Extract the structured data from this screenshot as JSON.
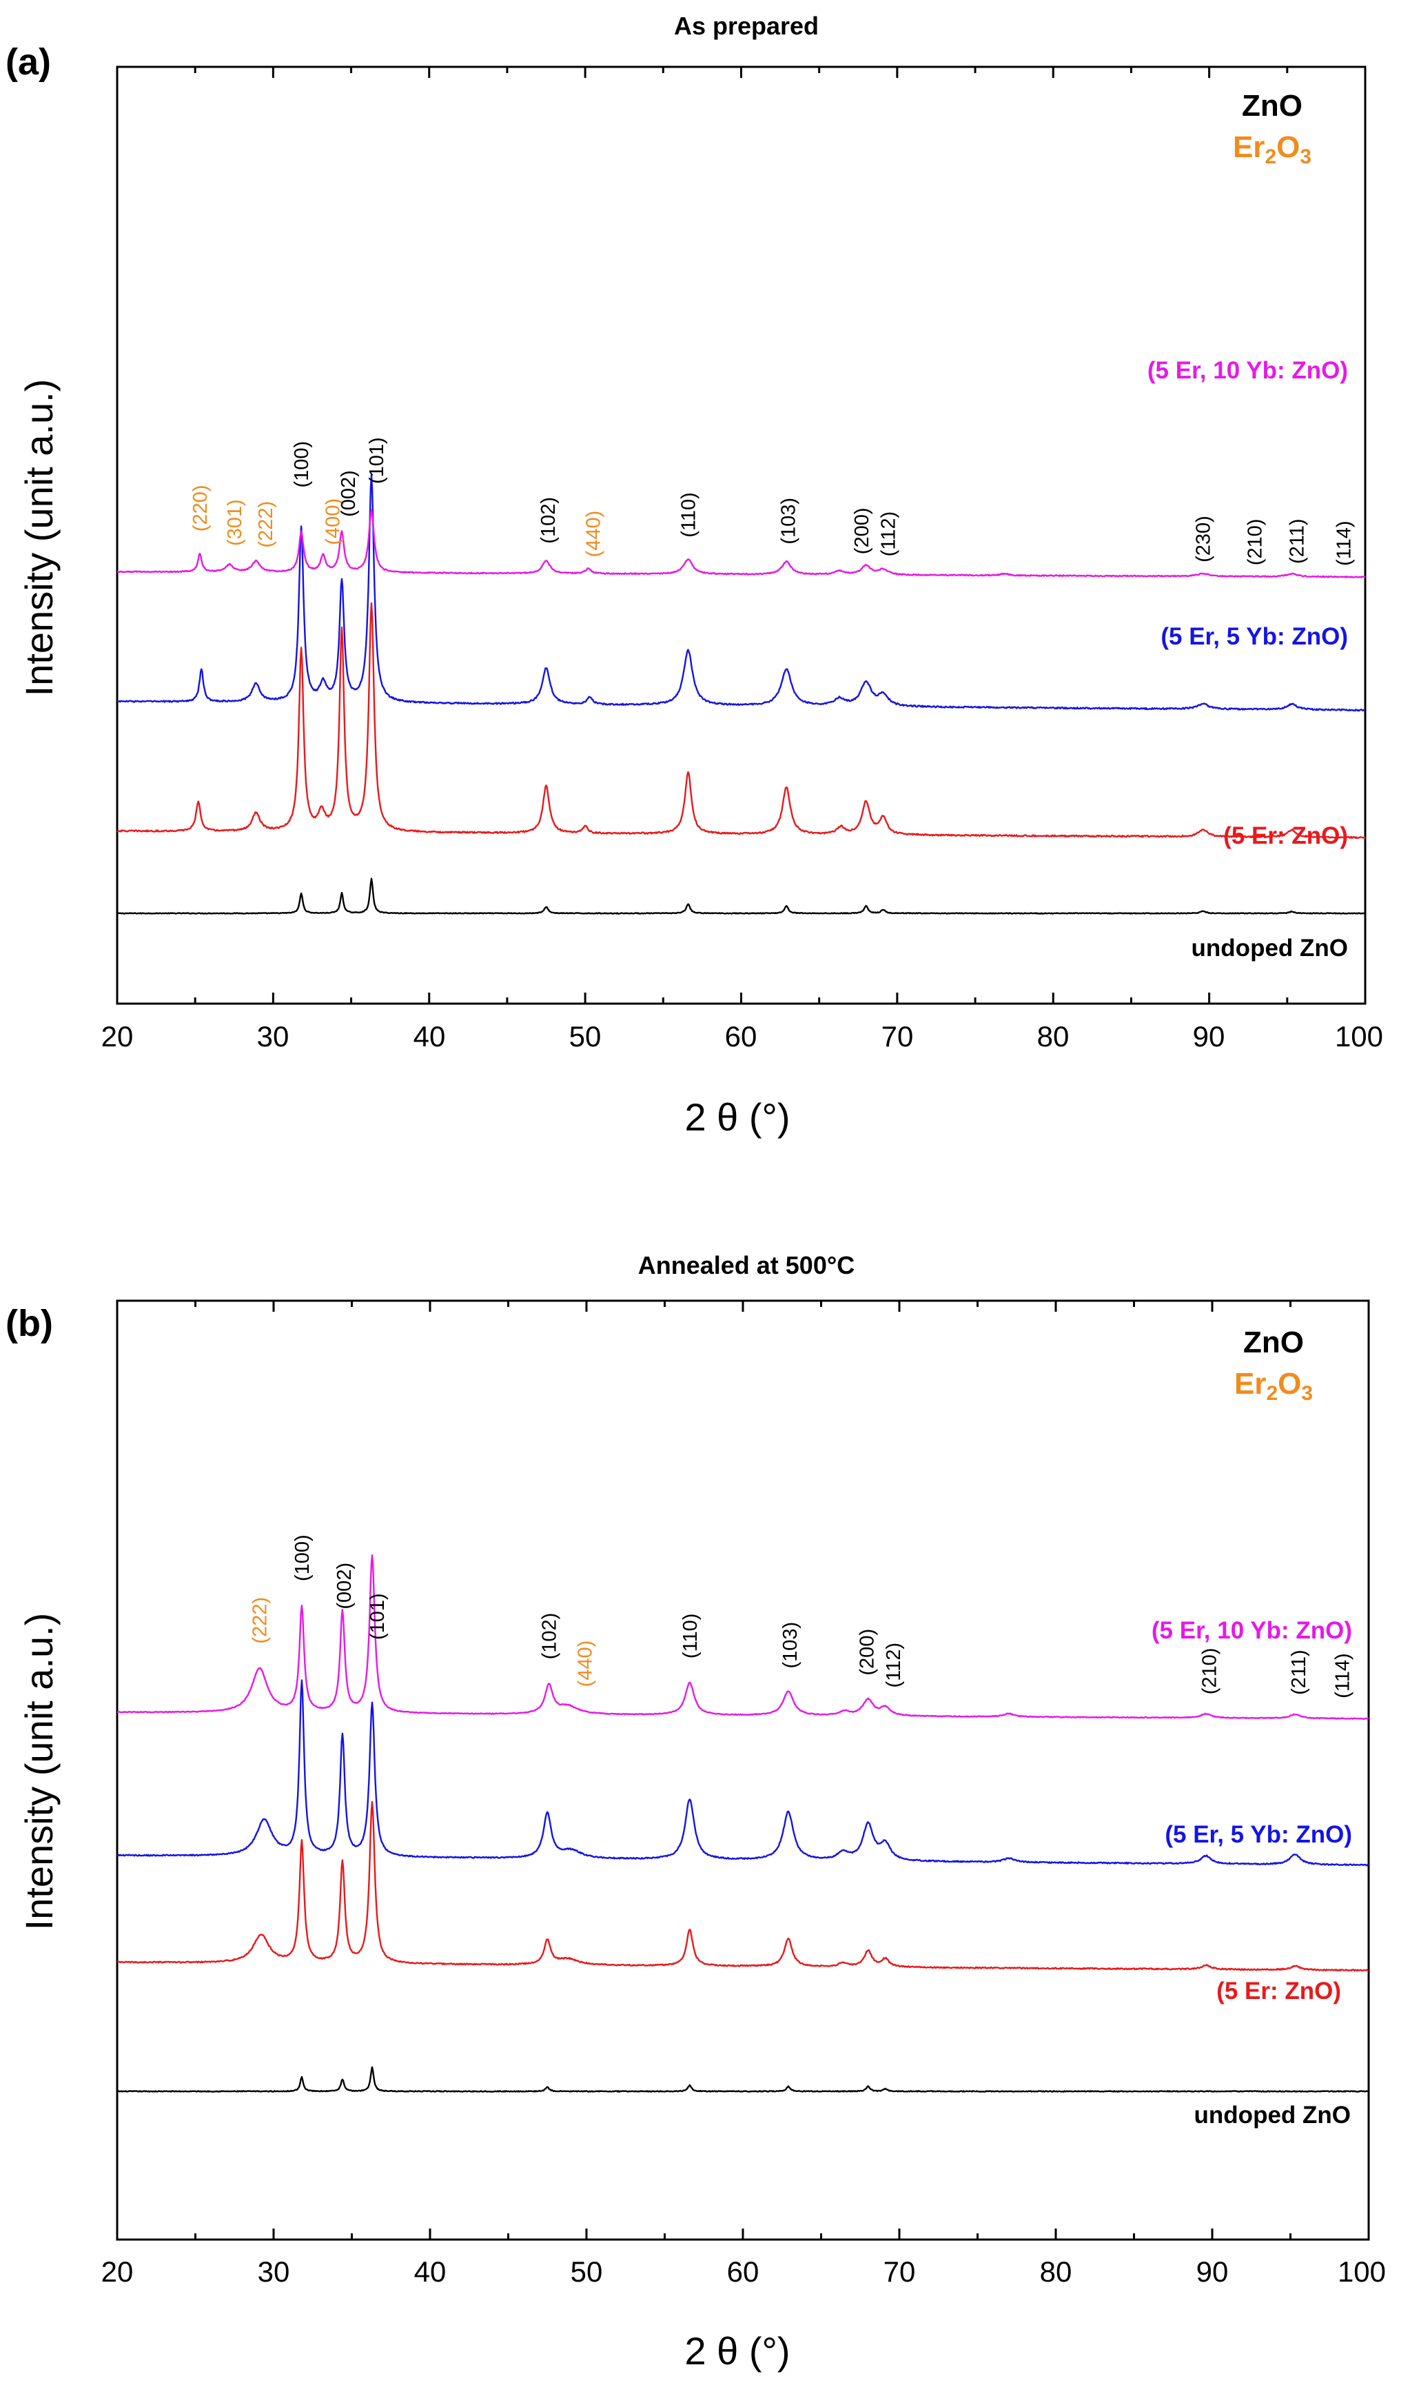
{
  "chart_data": [
    {
      "id": "a",
      "type": "line",
      "panel_label": "(a)",
      "title": "As prepared",
      "xlabel": "2 θ (°)",
      "ylabel": "Intensity (unit a.u.)",
      "xlim": [
        20,
        100
      ],
      "xticks": [
        "20",
        "30",
        "40",
        "50",
        "60",
        "70",
        "80",
        "90",
        "100"
      ],
      "legend": [
        {
          "text": "ZnO",
          "color": "#000000"
        },
        {
          "text": "Er2O3",
          "color": "#f08c1e"
        }
      ],
      "series": [
        {
          "name": "undoped ZnO",
          "label": "undoped ZnO",
          "color": "#000000",
          "offset": 0,
          "base": 0,
          "slope": 0,
          "noise": 0.2,
          "peaks": [
            [
              31.8,
              5.5,
              0.12
            ],
            [
              34.4,
              5.5,
              0.12
            ],
            [
              36.3,
              9.5,
              0.12
            ],
            [
              47.5,
              1.8,
              0.15
            ],
            [
              56.6,
              2.5,
              0.15
            ],
            [
              62.9,
              2,
              0.15
            ],
            [
              68,
              2,
              0.15
            ],
            [
              69.1,
              1,
              0.15
            ],
            [
              89.6,
              0.6,
              0.2
            ],
            [
              95.3,
              0.5,
              0.2
            ]
          ]
        },
        {
          "name": "5 Er: ZnO",
          "label": "(5 Er: ZnO)",
          "color": "#e8191b",
          "offset": 22,
          "base": 0.5,
          "slope": -0.022,
          "noise": 0.4,
          "peaks": [
            [
              25.2,
              8,
              0.18
            ],
            [
              28.9,
              5,
              0.3
            ],
            [
              31.8,
              50,
              0.18
            ],
            [
              33.1,
              5,
              0.25
            ],
            [
              34.4,
              55,
              0.18
            ],
            [
              36.3,
              62,
              0.2
            ],
            [
              47.5,
              13,
              0.25
            ],
            [
              50,
              2,
              0.18
            ],
            [
              56.6,
              17,
              0.25
            ],
            [
              62.9,
              13,
              0.3
            ],
            [
              66.4,
              2,
              0.3
            ],
            [
              68,
              9,
              0.3
            ],
            [
              69.1,
              4.5,
              0.3
            ],
            [
              89.6,
              2,
              0.35
            ],
            [
              95.3,
              2,
              0.35
            ]
          ]
        },
        {
          "name": "5 Er, 5 Yb: ZnO",
          "label": "(5 Er, 5 Yb: ZnO)",
          "color": "#1414e6",
          "offset": 57,
          "base": 1,
          "slope": -0.03,
          "noise": 0.4,
          "peaks": [
            [
              25.4,
              9,
              0.15
            ],
            [
              28.9,
              5,
              0.3
            ],
            [
              31.8,
              48,
              0.18
            ],
            [
              33.2,
              5,
              0.25
            ],
            [
              34.4,
              33,
              0.18
            ],
            [
              36.3,
              62,
              0.2
            ],
            [
              47.5,
              10,
              0.3
            ],
            [
              50.3,
              2,
              0.2
            ],
            [
              56.6,
              15,
              0.35
            ],
            [
              62.9,
              10,
              0.4
            ],
            [
              66.3,
              2,
              0.4
            ],
            [
              68,
              6.5,
              0.4
            ],
            [
              69.1,
              3,
              0.4
            ],
            [
              89.6,
              1.5,
              0.4
            ],
            [
              95.3,
              1.5,
              0.4
            ]
          ]
        },
        {
          "name": "5 Er, 10 Yb: ZnO",
          "label": "(5 Er, 10 Yb: ZnO)",
          "color": "#e619e6",
          "offset": 93,
          "base": 0.5,
          "slope": -0.018,
          "noise": 0.3,
          "peaks": [
            [
              25.3,
              5,
              0.15
            ],
            [
              27.2,
              2,
              0.3
            ],
            [
              28.9,
              3,
              0.3
            ],
            [
              31.8,
              11,
              0.18
            ],
            [
              33.2,
              4.5,
              0.2
            ],
            [
              34.4,
              11,
              0.18
            ],
            [
              36.3,
              17,
              0.2
            ],
            [
              47.5,
              3.5,
              0.3
            ],
            [
              50.2,
              1.5,
              0.2
            ],
            [
              56.6,
              4,
              0.35
            ],
            [
              62.9,
              3.5,
              0.35
            ],
            [
              66.3,
              1,
              0.35
            ],
            [
              68,
              2.5,
              0.35
            ],
            [
              69.1,
              1.5,
              0.35
            ],
            [
              76.9,
              0.5,
              0.3
            ],
            [
              89.6,
              0.8,
              0.4
            ],
            [
              95.3,
              0.8,
              0.4
            ]
          ]
        }
      ],
      "peak_labels": [
        {
          "text": "(220)",
          "x": 25.3,
          "color": "#f08c1e",
          "above": 6
        },
        {
          "text": "(301)",
          "x": 27.5,
          "color": "#f08c1e",
          "above": 6
        },
        {
          "text": "(222)",
          "x": 29.5,
          "color": "#f08c1e",
          "above": 6
        },
        {
          "text": "(100)",
          "x": 31.8,
          "color": "#000000",
          "above": 12
        },
        {
          "text": "(400)",
          "x": 33.8,
          "color": "#f08c1e",
          "above": 6
        },
        {
          "text": "(002)",
          "x": 34.8,
          "color": "#000000",
          "above": 13
        },
        {
          "text": "(101)",
          "x": 36.6,
          "color": "#000000",
          "above": 19
        },
        {
          "text": "(102)",
          "x": 47.6,
          "color": "#000000",
          "above": 5
        },
        {
          "text": "(440)",
          "x": 50.5,
          "color": "#f08c1e",
          "above": 4
        },
        {
          "text": "(110)",
          "x": 56.6,
          "color": "#000000",
          "above": 6
        },
        {
          "text": "(103)",
          "x": 63.0,
          "color": "#000000",
          "above": 5
        },
        {
          "text": "(200)",
          "x": 67.7,
          "color": "#000000",
          "above": 4
        },
        {
          "text": "(112)",
          "x": 69.4,
          "color": "#000000",
          "above": 4
        },
        {
          "text": "(230)",
          "x": 89.6,
          "color": "#000000",
          "above": 3
        },
        {
          "text": "(210)",
          "x": 92.9,
          "color": "#000000",
          "above": 3
        },
        {
          "text": "(211)",
          "x": 95.6,
          "color": "#000000",
          "above": 3
        },
        {
          "text": "(114)",
          "x": 98.6,
          "color": "#000000",
          "above": 3
        }
      ]
    },
    {
      "id": "b",
      "type": "line",
      "panel_label": "(b)",
      "title": "Annealed at 500°C",
      "xlabel": "2 θ (°)",
      "ylabel": "Intensity (unit a.u.)",
      "xlim": [
        20,
        100
      ],
      "xticks": [
        "20",
        "30",
        "40",
        "50",
        "60",
        "70",
        "80",
        "90",
        "100"
      ],
      "legend": [
        {
          "text": "ZnO",
          "color": "#000000"
        },
        {
          "text": "Er2O3",
          "color": "#f08c1e"
        }
      ],
      "series": [
        {
          "name": "undoped ZnO",
          "label": "undoped ZnO",
          "color": "#000000",
          "offset": 0,
          "base": 0,
          "slope": 0,
          "noise": 0.2,
          "peaks": [
            [
              31.8,
              3.5,
              0.12
            ],
            [
              34.4,
              3,
              0.12
            ],
            [
              36.3,
              6,
              0.12
            ],
            [
              47.5,
              1,
              0.15
            ],
            [
              56.6,
              1.5,
              0.15
            ],
            [
              62.9,
              1.2,
              0.15
            ],
            [
              68,
              1.2,
              0.15
            ],
            [
              69.1,
              0.6,
              0.15
            ]
          ]
        },
        {
          "name": "5 Er: ZnO",
          "label": "(5 Er: ZnO)",
          "color": "#e8191b",
          "offset": 31,
          "base": 1,
          "slope": -0.025,
          "noise": 0.3,
          "peaks": [
            [
              29.2,
              7,
              0.6
            ],
            [
              31.8,
              30,
              0.18
            ],
            [
              34.4,
              25,
              0.18
            ],
            [
              36.3,
              40,
              0.2
            ],
            [
              47.5,
              6,
              0.25
            ],
            [
              48.8,
              1.5,
              0.8
            ],
            [
              56.6,
              9,
              0.25
            ],
            [
              62.9,
              7,
              0.3
            ],
            [
              66.4,
              1,
              0.3
            ],
            [
              68,
              4,
              0.3
            ],
            [
              69.1,
              2,
              0.3
            ],
            [
              89.6,
              1,
              0.35
            ],
            [
              95.3,
              1,
              0.35
            ]
          ]
        },
        {
          "name": "5 Er, 5 Yb: ZnO",
          "label": "(5 Er, 5 Yb: ZnO)",
          "color": "#1414e6",
          "offset": 57,
          "base": 1.5,
          "slope": -0.03,
          "noise": 0.3,
          "peaks": [
            [
              29.4,
              9,
              0.6
            ],
            [
              31.8,
              43,
              0.18
            ],
            [
              34.4,
              30,
              0.18
            ],
            [
              36.3,
              38,
              0.2
            ],
            [
              47.5,
              11,
              0.3
            ],
            [
              49,
              2,
              0.8
            ],
            [
              56.6,
              15,
              0.35
            ],
            [
              62.9,
              12,
              0.4
            ],
            [
              66.4,
              2,
              0.4
            ],
            [
              68,
              9,
              0.4
            ],
            [
              69.1,
              4,
              0.4
            ],
            [
              77,
              1,
              0.4
            ],
            [
              89.6,
              2,
              0.4
            ],
            [
              95.3,
              2.5,
              0.4
            ]
          ]
        },
        {
          "name": "5 Er, 10 Yb: ZnO",
          "label": "(5 Er, 10 Yb: ZnO)",
          "color": "#e619e6",
          "offset": 93,
          "base": 1,
          "slope": -0.02,
          "noise": 0.2,
          "peaks": [
            [
              29.1,
              11,
              0.6
            ],
            [
              31.8,
              26,
              0.18
            ],
            [
              34.4,
              25,
              0.18
            ],
            [
              36.3,
              39,
              0.2
            ],
            [
              47.6,
              7,
              0.3
            ],
            [
              48.8,
              2,
              0.8
            ],
            [
              56.6,
              8,
              0.35
            ],
            [
              62.9,
              6,
              0.4
            ],
            [
              66.5,
              1,
              0.4
            ],
            [
              68,
              4,
              0.4
            ],
            [
              69.1,
              2,
              0.4
            ],
            [
              77,
              0.8,
              0.4
            ],
            [
              89.6,
              1,
              0.4
            ],
            [
              95.3,
              1,
              0.4
            ]
          ]
        }
      ],
      "peak_labels": [
        {
          "text": "(222)",
          "x": 29.1,
          "color": "#f08c1e",
          "above": 6
        },
        {
          "text": "(100)",
          "x": 31.8,
          "color": "#000000",
          "above": 6
        },
        {
          "text": "(002)",
          "x": 34.5,
          "color": "#000000",
          "above": 6
        },
        {
          "text": "(101)",
          "x": 36.6,
          "color": "#000000",
          "above": 6
        },
        {
          "text": "(102)",
          "x": 47.6,
          "color": "#000000",
          "above": 6
        },
        {
          "text": "(440)",
          "x": 49.9,
          "color": "#f08c1e",
          "above": 6
        },
        {
          "text": "(110)",
          "x": 56.6,
          "color": "#000000",
          "above": 6
        },
        {
          "text": "(103)",
          "x": 63.0,
          "color": "#000000",
          "above": 6
        },
        {
          "text": "(200)",
          "x": 67.9,
          "color": "#000000",
          "above": 6
        },
        {
          "text": "(112)",
          "x": 69.6,
          "color": "#000000",
          "above": 6
        },
        {
          "text": "(210)",
          "x": 89.8,
          "color": "#000000",
          "above": 5
        },
        {
          "text": "(211)",
          "x": 95.5,
          "color": "#000000",
          "above": 5
        },
        {
          "text": "(114)",
          "x": 98.3,
          "color": "#000000",
          "above": 5
        }
      ]
    }
  ]
}
